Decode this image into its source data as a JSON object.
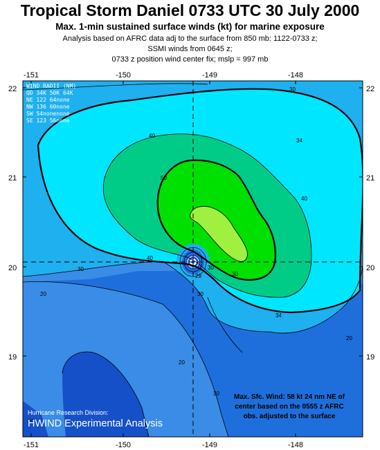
{
  "header": {
    "title": "Tropical Storm Daniel  0733 UTC 30 July 2000",
    "subtitle": "Max. 1-min sustained surface winds (kt) for marine exposure",
    "lines": [
      "Analysis based on AFRC data adj to the surface from 850 mb: 1122-0733 z;",
      "SSMI winds from 0645 z;",
      "0733 z position wind center fix; mslp = 997 mb"
    ]
  },
  "axes": {
    "x_ticks": [
      "-151",
      "-150",
      "-149",
      "-148"
    ],
    "y_ticks": [
      "22",
      "21",
      "20",
      "19"
    ]
  },
  "wind_radii": {
    "title": "WIND RADII (NM)",
    "rows": [
      "QD  34K  50K  64K",
      "NE  122   64none",
      "NW  136   60none",
      "SW   54nonenone",
      "SE  123   56none"
    ]
  },
  "contour_labels": [
    "30",
    "34",
    "40",
    "50",
    "40",
    "40",
    "30",
    "30",
    "20",
    "30",
    "34",
    "20",
    "20",
    "30",
    "20",
    "29",
    "30"
  ],
  "max_wind": {
    "lines": [
      "Max. Sfc. Wind: 58 kt 24 nm NE of",
      "center based on the 0555 z AFRC",
      "obs. adjusted to the surface"
    ]
  },
  "credit": {
    "division": "Hurricane Research Division:",
    "product": "HWIND Experimental Analysis"
  },
  "colors": {
    "c_lt20": "#3a8ce6",
    "c_20": "#1e6fdc",
    "c_30": "#1fb0f0",
    "c_34": "#00e6ff",
    "c_40": "#00cc88",
    "c_50": "#00e000",
    "c_60": "#a0f040",
    "c_low": "#1650c8"
  }
}
